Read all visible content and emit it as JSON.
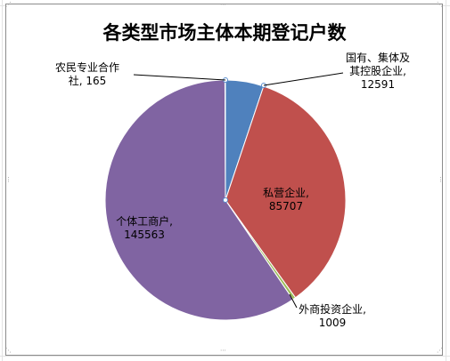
{
  "chart_data": {
    "type": "pie",
    "title": "各类型市场主体本期登记户数",
    "slices": [
      {
        "label": "国有、集体及其控股企业",
        "value": 12591,
        "color": "#4f81bd"
      },
      {
        "label": "私营企业",
        "value": 85707,
        "color": "#c0504d"
      },
      {
        "label": "外商投资企业",
        "value": 1009,
        "color": "#9bbb59"
      },
      {
        "label": "个体工商户",
        "value": 145563,
        "color": "#8064a2"
      },
      {
        "label": "农民专业合作社",
        "value": 165,
        "color": "#4bacc6"
      }
    ],
    "data_labels": [
      {
        "lines": [
          "国有、集体及",
          "其控股企业,",
          "12591"
        ]
      },
      {
        "lines": [
          "私营企业,",
          "85707"
        ]
      },
      {
        "lines": [
          "外商投资企业,",
          "1009"
        ]
      },
      {
        "lines": [
          "个体工商户,",
          "145563"
        ]
      },
      {
        "lines": [
          "农民专业合作",
          "社, 165"
        ]
      }
    ]
  }
}
